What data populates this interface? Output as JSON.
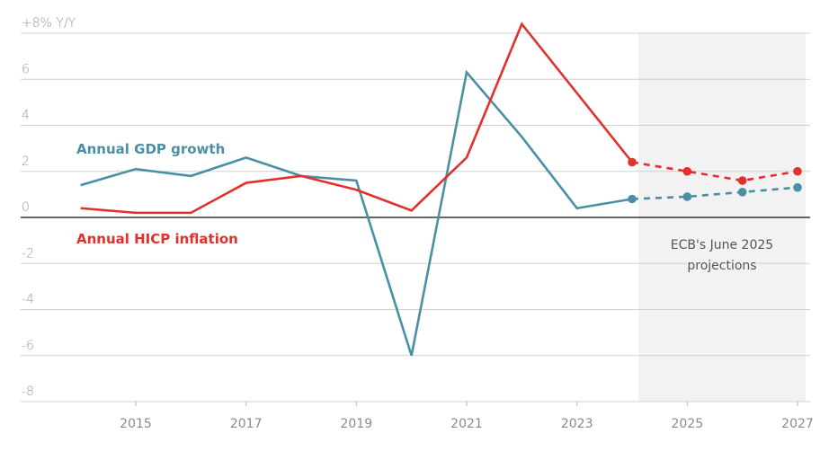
{
  "chart_data": {
    "type": "line",
    "title": "",
    "xlabel": "",
    "ylabel": "",
    "y_unit_label": "+8% Y/Y",
    "x": [
      2014,
      2015,
      2016,
      2017,
      2018,
      2019,
      2020,
      2021,
      2022,
      2023,
      2024,
      2025,
      2026,
      2027
    ],
    "xlim": [
      2012.9,
      2027.2
    ],
    "ylim": [
      -8,
      8
    ],
    "y_ticks": [
      8,
      6,
      4,
      2,
      0,
      -2,
      -4,
      -6,
      -8
    ],
    "y_tick_labels": [
      "+8% Y/Y",
      "6",
      "4",
      "2",
      "0",
      "-2",
      "-4",
      "-6",
      "-8"
    ],
    "x_ticks": [
      2015,
      2017,
      2019,
      2021,
      2023,
      2025,
      2027
    ],
    "x_tick_labels": [
      "2015",
      "2017",
      "2019",
      "2021",
      "2023",
      "2025",
      "2027"
    ],
    "grid": true,
    "projection_start_index": 10,
    "shaded_region": {
      "from": 2024.1,
      "to": 2027.15,
      "label_line1": "ECB's June 2025",
      "label_line2": "projections"
    },
    "series": [
      {
        "name": "Annual GDP growth",
        "color": "#4a90a4",
        "values": [
          1.4,
          2.1,
          1.8,
          2.6,
          1.8,
          1.6,
          -6.0,
          6.3,
          3.5,
          0.4,
          0.8,
          0.9,
          1.1,
          1.3
        ]
      },
      {
        "name": "Annual HICP inflation",
        "color": "#e0312b",
        "values": [
          0.4,
          0.2,
          0.2,
          1.5,
          1.8,
          1.2,
          0.3,
          2.6,
          8.4,
          5.4,
          2.4,
          2.0,
          1.6,
          2.0
        ]
      }
    ],
    "legend": "inline-left"
  },
  "colors": {
    "grid": "#d0d0d0",
    "zero_line": "#333333",
    "shade": "#f2f2f2"
  }
}
